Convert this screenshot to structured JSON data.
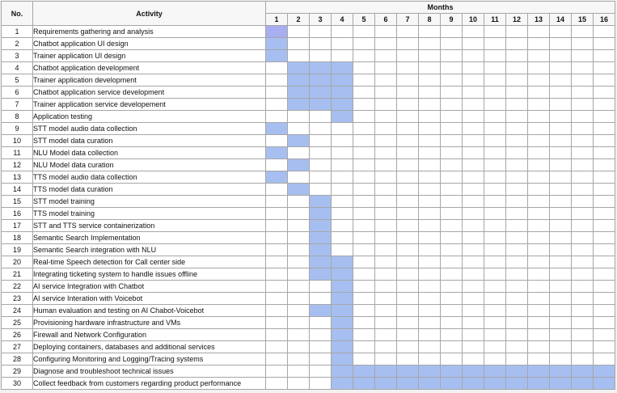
{
  "header": {
    "no_label": "No.",
    "activity_label": "Activity",
    "months_label": "Months"
  },
  "months": [
    "1",
    "2",
    "3",
    "4",
    "5",
    "6",
    "7",
    "8",
    "9",
    "10",
    "11",
    "12",
    "13",
    "14",
    "15",
    "16"
  ],
  "colors": {
    "bar": "#a7bff0",
    "bar_first": "#a9aef0",
    "grid": "#a6a6a6"
  },
  "tasks": [
    {
      "no": "1",
      "activity": "Requirements gathering and analysis",
      "months": [
        1
      ]
    },
    {
      "no": "2",
      "activity": "Chatbot application UI design",
      "months": [
        1
      ]
    },
    {
      "no": "3",
      "activity": "Trainer application UI design",
      "months": [
        1
      ]
    },
    {
      "no": "4",
      "activity": "Chatbot application development",
      "months": [
        2,
        3,
        4
      ]
    },
    {
      "no": "5",
      "activity": "Trainer application development",
      "months": [
        2,
        3,
        4
      ]
    },
    {
      "no": "6",
      "activity": "Chatbot application service development",
      "months": [
        2,
        3,
        4
      ]
    },
    {
      "no": "7",
      "activity": "Trainer application service developement",
      "months": [
        2,
        3,
        4
      ]
    },
    {
      "no": "8",
      "activity": "Application testing",
      "months": [
        4
      ]
    },
    {
      "no": "9",
      "activity": "STT model audio data collection",
      "months": [
        1
      ]
    },
    {
      "no": "10",
      "activity": "STT model data curation",
      "months": [
        2
      ]
    },
    {
      "no": "11",
      "activity": "NLU Model data collection",
      "months": [
        1
      ]
    },
    {
      "no": "12",
      "activity": "NLU Model data curation",
      "months": [
        2
      ]
    },
    {
      "no": "13",
      "activity": "TTS model audio data collection",
      "months": [
        1
      ]
    },
    {
      "no": "14",
      "activity": "TTS model data curation",
      "months": [
        2
      ]
    },
    {
      "no": "15",
      "activity": "STT model training",
      "months": [
        3
      ]
    },
    {
      "no": "16",
      "activity": "TTS model training",
      "months": [
        3
      ]
    },
    {
      "no": "17",
      "activity": "STT and TTS service containerization",
      "months": [
        3
      ]
    },
    {
      "no": "18",
      "activity": "Semantic Search Implementation",
      "months": [
        3
      ]
    },
    {
      "no": "19",
      "activity": "Semantic Search integration with NLU",
      "months": [
        3
      ]
    },
    {
      "no": "20",
      "activity": "Real-time Speech detection for Call center side",
      "months": [
        3,
        4
      ]
    },
    {
      "no": "21",
      "activity": "Integrating ticketing system to handle issues offline",
      "months": [
        3,
        4
      ]
    },
    {
      "no": "22",
      "activity": "AI service Integration with Chatbot",
      "months": [
        4
      ]
    },
    {
      "no": "23",
      "activity": "AI service Interation with Voicebot",
      "months": [
        4
      ]
    },
    {
      "no": "24",
      "activity": "Human evaluation and testing on AI Chabot-Voicebot",
      "months": [
        3,
        4
      ]
    },
    {
      "no": "25",
      "activity": "Provisioning hardware infrastructure and VMs",
      "months": [
        4
      ]
    },
    {
      "no": "26",
      "activity": "Firewall and Network Configuration",
      "months": [
        4
      ]
    },
    {
      "no": "27",
      "activity": "Deploying containers, databases and additional services",
      "months": [
        4
      ]
    },
    {
      "no": "28",
      "activity": "Configuring Monitoring and Logging/Tracing systems",
      "months": [
        4
      ]
    },
    {
      "no": "29",
      "activity": "Diagnose and troubleshoot technical issues",
      "months": [
        4,
        5,
        6,
        7,
        8,
        9,
        10,
        11,
        12,
        13,
        14,
        15,
        16
      ]
    },
    {
      "no": "30",
      "activity": "Collect feedback from customers regarding product performance",
      "months": [
        4,
        5,
        6,
        7,
        8,
        9,
        10,
        11,
        12,
        13,
        14,
        15,
        16
      ]
    }
  ]
}
